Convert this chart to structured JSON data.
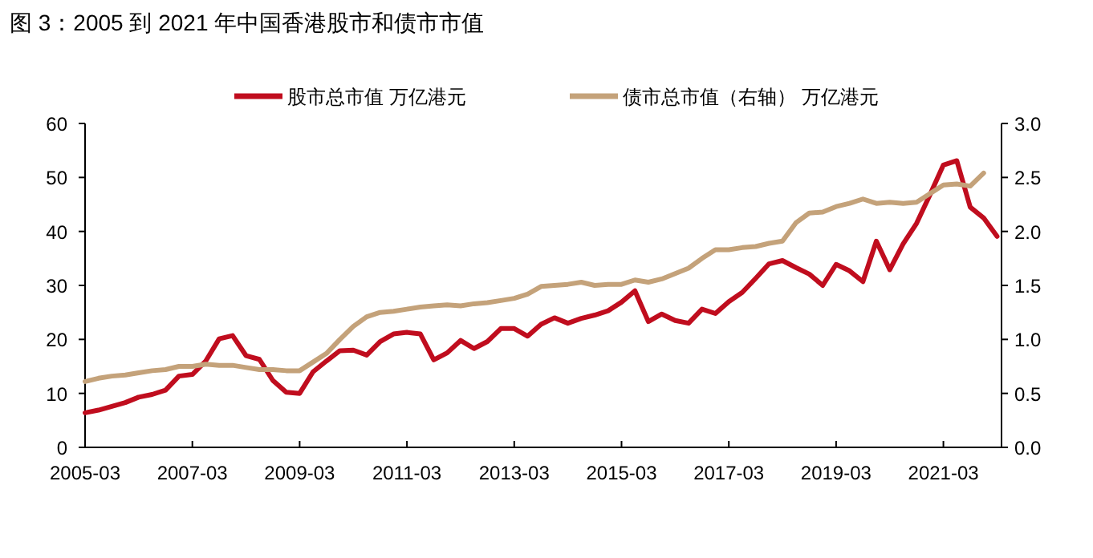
{
  "chart_data": {
    "type": "line",
    "title": "图 3：2005 到 2021 年中国香港股市和债市市值",
    "x": [
      "2005-03",
      "2005-06",
      "2005-09",
      "2005-12",
      "2006-03",
      "2006-06",
      "2006-09",
      "2006-12",
      "2007-03",
      "2007-06",
      "2007-09",
      "2007-12",
      "2008-03",
      "2008-06",
      "2008-09",
      "2008-12",
      "2009-03",
      "2009-06",
      "2009-09",
      "2009-12",
      "2010-03",
      "2010-06",
      "2010-09",
      "2010-12",
      "2011-03",
      "2011-06",
      "2011-09",
      "2011-12",
      "2012-03",
      "2012-06",
      "2012-09",
      "2012-12",
      "2013-03",
      "2013-06",
      "2013-09",
      "2013-12",
      "2014-03",
      "2014-06",
      "2014-09",
      "2014-12",
      "2015-03",
      "2015-06",
      "2015-09",
      "2015-12",
      "2016-03",
      "2016-06",
      "2016-09",
      "2016-12",
      "2017-03",
      "2017-06",
      "2017-09",
      "2017-12",
      "2018-03",
      "2018-06",
      "2018-09",
      "2018-12",
      "2019-03",
      "2019-06",
      "2019-09",
      "2019-12",
      "2020-03",
      "2020-06",
      "2020-09",
      "2020-12",
      "2021-03",
      "2021-06",
      "2021-09",
      "2021-12",
      "2022-03"
    ],
    "series": [
      {
        "name": "股市总市值 万亿港元",
        "color": "#c00d1e",
        "values": [
          6.4,
          6.9,
          7.6,
          8.3,
          9.3,
          9.8,
          10.6,
          13.2,
          13.5,
          16,
          20.1,
          20.7,
          17,
          16.3,
          12.4,
          10.2,
          10,
          14,
          16,
          17.9,
          18,
          17.1,
          19.6,
          21,
          21.3,
          21,
          16.2,
          17.5,
          19.8,
          18.3,
          19.6,
          22,
          22,
          20.6,
          22.8,
          24,
          23,
          23.9,
          24.5,
          25.3,
          26.9,
          29,
          23.3,
          24.7,
          23.5,
          23,
          25.6,
          24.8,
          27,
          28.7,
          31.3,
          34,
          34.6,
          33.3,
          32.1,
          30,
          33.9,
          32.7,
          30.7,
          38.2,
          32.9,
          37.7,
          41.5,
          46.8,
          52.3,
          53.1,
          44.5,
          42.5,
          39.1
        ]
      },
      {
        "name": "债市总市值（右轴） 万亿港元",
        "color": "#c4a27a",
        "axis": "y2",
        "values": [
          0.61,
          0.64,
          0.66,
          0.67,
          0.69,
          0.71,
          0.72,
          0.75,
          0.75,
          0.77,
          0.76,
          0.76,
          0.74,
          0.72,
          0.72,
          0.71,
          0.71,
          0.79,
          0.87,
          1.0,
          1.12,
          1.21,
          1.25,
          1.26,
          1.28,
          1.3,
          1.31,
          1.32,
          1.31,
          1.33,
          1.34,
          1.36,
          1.38,
          1.42,
          1.49,
          1.5,
          1.51,
          1.53,
          1.5,
          1.51,
          1.51,
          1.55,
          1.53,
          1.56,
          1.61,
          1.66,
          1.75,
          1.83,
          1.83,
          1.85,
          1.86,
          1.89,
          1.91,
          2.08,
          2.17,
          2.18,
          2.23,
          2.26,
          2.3,
          2.26,
          2.27,
          2.26,
          2.27,
          2.35,
          2.43,
          2.44,
          2.42,
          2.54,
          null
        ]
      }
    ],
    "xlim": [
      "2005-03",
      "2022-04"
    ],
    "xticks": [
      "2005-03",
      "2007-03",
      "2009-03",
      "2011-03",
      "2013-03",
      "2015-03",
      "2017-03",
      "2019-03",
      "2021-03"
    ],
    "ylim": [
      0,
      60
    ],
    "yticks": [
      0,
      10,
      20,
      30,
      40,
      50,
      60
    ],
    "y2lim": [
      0,
      3
    ],
    "y2ticks": [
      {
        "value": 0,
        "label": "0.0"
      },
      {
        "value": 0.5,
        "label": "0.5"
      },
      {
        "value": 1,
        "label": "1.0"
      },
      {
        "value": 1.5,
        "label": "1.5"
      },
      {
        "value": 2,
        "label": "2.0"
      },
      {
        "value": 2.5,
        "label": "2.5"
      },
      {
        "value": 3,
        "label": "3.0"
      }
    ],
    "legend": "top",
    "grid": false,
    "marker": "none",
    "line_style": "solid"
  }
}
